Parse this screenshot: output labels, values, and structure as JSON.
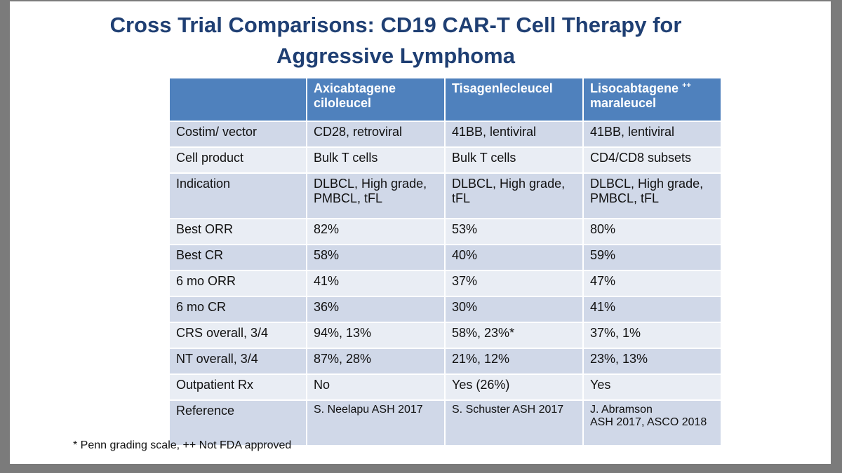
{
  "title_line1": "Cross Trial Comparisons: CD19 CAR-T Cell Therapy for",
  "title_line2": "Aggressive Lymphoma",
  "headers": {
    "col1_line1": "Axicabtagene",
    "col1_line2": "ciloleucel",
    "col2": "Tisagenlecleucel",
    "col3_line1": "Lisocabtagene",
    "col3_sup": "++",
    "col3_line2": "maraleucel"
  },
  "rows": [
    {
      "label": "Costim/ vector",
      "a": "CD28, retroviral",
      "b": "41BB, lentiviral",
      "c": "41BB, lentiviral"
    },
    {
      "label": "Cell product",
      "a": "Bulk T cells",
      "b": "Bulk T cells",
      "c": "CD4/CD8 subsets"
    },
    {
      "label": "Indication",
      "a1": "DLBCL, High grade,",
      "a2": "PMBCL, tFL",
      "b1": "DLBCL, High grade,",
      "b2": "tFL",
      "c1": "DLBCL, High grade,",
      "c2": "PMBCL, tFL"
    },
    {
      "label": "Best ORR",
      "a": "82%",
      "b": "53%",
      "c": "80%"
    },
    {
      "label": "Best CR",
      "a": "58%",
      "b": "40%",
      "c": "59%"
    },
    {
      "label": "6 mo ORR",
      "a": "41%",
      "b": "37%",
      "c": "47%"
    },
    {
      "label": "6 mo CR",
      "a": "36%",
      "b": "30%",
      "c": "41%"
    },
    {
      "label": "CRS overall, 3/4",
      "a": "94%, 13%",
      "b": "58%, 23%*",
      "c": "37%, 1%"
    },
    {
      "label": "NT overall, 3/4",
      "a": "87%, 28%",
      "b": "21%, 12%",
      "c": "23%, 13%"
    },
    {
      "label": "Outpatient Rx",
      "a": "No",
      "b": "Yes (26%)",
      "c": "Yes"
    },
    {
      "label": "Reference",
      "a": "S. Neelapu ASH 2017",
      "b": "S. Schuster ASH 2017",
      "c1": "J. Abramson",
      "c2": "ASH 2017, ASCO 2018"
    }
  ],
  "footnote": "* Penn grading scale, ++ Not FDA approved"
}
